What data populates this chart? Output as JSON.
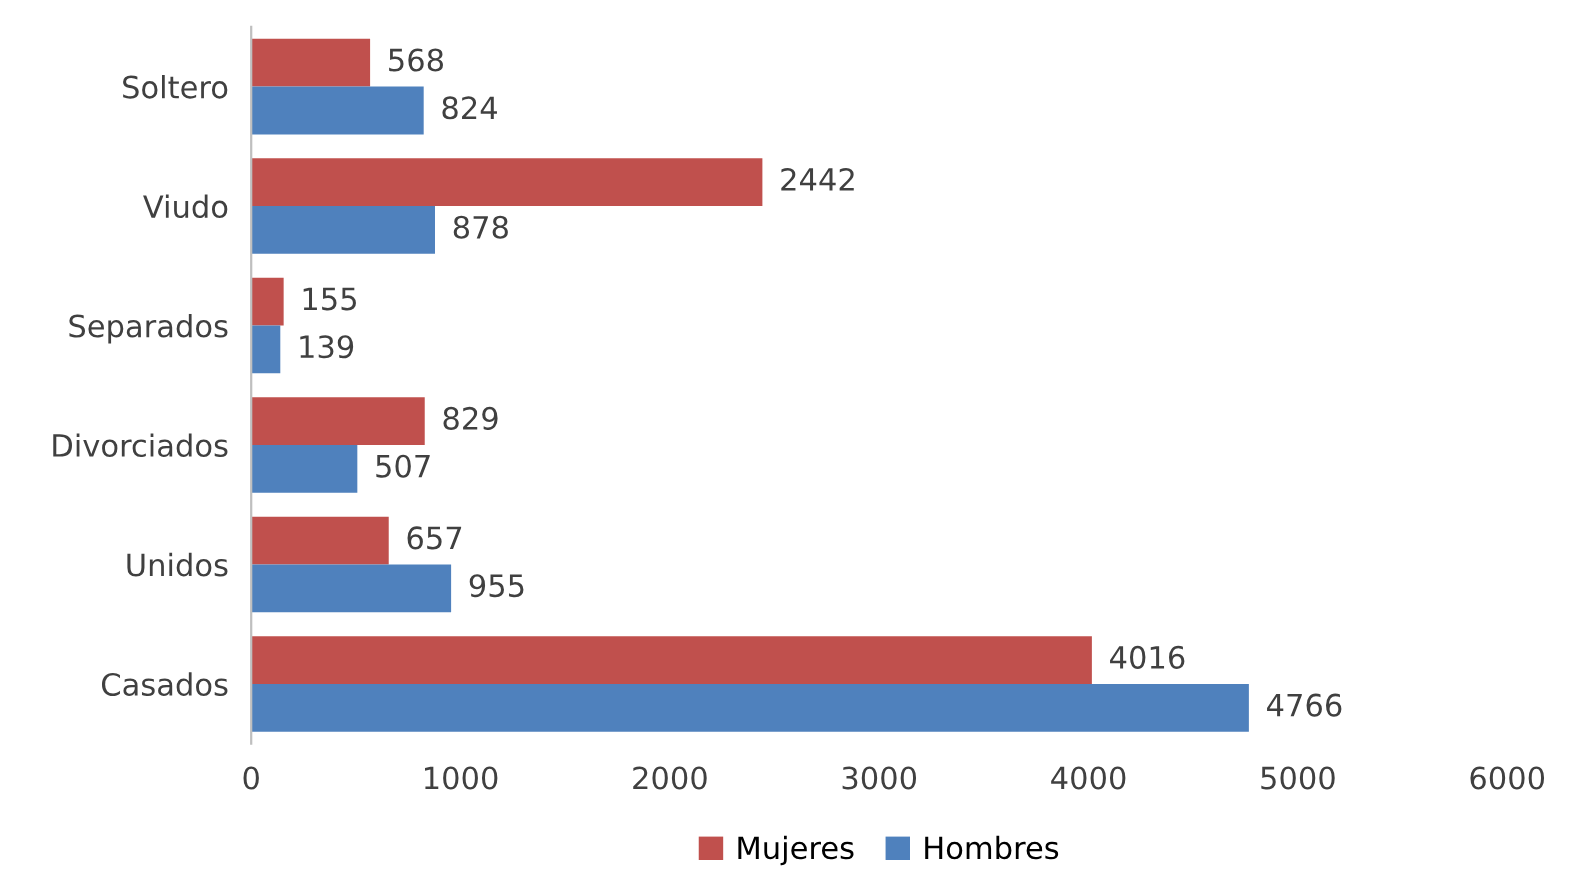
{
  "chart_data": {
    "type": "bar",
    "orientation": "horizontal",
    "categories": [
      "Soltero",
      "Viudo",
      "Separados",
      "Divorciados",
      "Unidos",
      "Casados"
    ],
    "series": [
      {
        "name": "Mujeres",
        "color": "#c0504d",
        "values": [
          568,
          2442,
          155,
          829,
          657,
          4016
        ]
      },
      {
        "name": "Hombres",
        "color": "#4f81bd",
        "values": [
          824,
          878,
          139,
          507,
          955,
          4766
        ]
      }
    ],
    "xlim": [
      0,
      6000
    ],
    "xticks": [
      0,
      1000,
      2000,
      3000,
      4000,
      5000,
      6000
    ],
    "data_labels": true,
    "legend": "bottom",
    "grid": false
  }
}
